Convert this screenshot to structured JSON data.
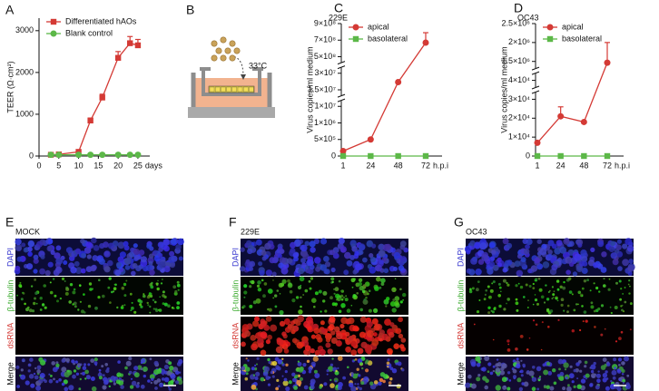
{
  "chart_data": [
    {
      "type": "line",
      "ylabel": "TEER (Ω·cm²)",
      "xlabel": "days",
      "xlim": [
        0,
        28
      ],
      "xticks": [
        0,
        5,
        10,
        15,
        20,
        25
      ],
      "ylim": [
        0,
        3300
      ],
      "yticks": [
        0,
        1000,
        2000,
        3000
      ],
      "legend": "upper left",
      "x": [
        3,
        5,
        10,
        13,
        16,
        20,
        23,
        25
      ],
      "series": [
        {
          "name": "Differentiated hAOs",
          "color": "#d43a35",
          "marker": "square",
          "values": [
            30,
            40,
            100,
            850,
            1400,
            2350,
            2700,
            2650
          ],
          "errors": [
            10,
            10,
            20,
            60,
            80,
            150,
            160,
            140
          ]
        },
        {
          "name": "Blank control",
          "color": "#5cb848",
          "marker": "circle",
          "values": [
            30,
            30,
            30,
            30,
            30,
            30,
            30,
            30
          ],
          "errors": [
            5,
            5,
            5,
            5,
            5,
            5,
            5,
            5
          ]
        }
      ]
    },
    {
      "type": "line",
      "title": "229E",
      "ylabel": "Virus copies/ml medium",
      "xlabel": "h.p.i",
      "categories": [
        "1",
        "24",
        "48",
        "72"
      ],
      "axis_break": true,
      "legend": "upper left",
      "ylim": [
        0,
        900000000
      ],
      "yticks": [
        0,
        {
          "value": 500000,
          "label": "5×10⁵"
        },
        {
          "value": 1000000,
          "label": "1×10⁶"
        },
        {
          "value": 10000000,
          "label": "1×10⁷"
        },
        {
          "value": 15000000,
          "label": "1.5×10⁷"
        },
        {
          "value": 30000000,
          "label": "3×10⁷"
        },
        {
          "value": 500000000,
          "label": "5×10⁸"
        },
        {
          "value": 700000000,
          "label": "7×10⁸"
        },
        {
          "value": 900000000,
          "label": "9×10⁸"
        }
      ],
      "series": [
        {
          "name": "apical",
          "color": "#d43a35",
          "marker": "circle",
          "values": [
            150000,
            500000,
            22000000,
            670000000
          ],
          "errors": [
            0,
            0,
            0,
            120000000
          ]
        },
        {
          "name": "basolateral",
          "color": "#5cb848",
          "marker": "square",
          "values": [
            0,
            0,
            0,
            0
          ],
          "errors": [
            0,
            0,
            0,
            0
          ]
        }
      ]
    },
    {
      "type": "line",
      "title": "OC43",
      "ylabel": "Virus copies/ml medium",
      "xlabel": "h.p.i",
      "categories": [
        "1",
        "24",
        "48",
        "72"
      ],
      "axis_break": true,
      "legend": "upper left",
      "ylim": [
        0,
        2500000
      ],
      "yticks": [
        0,
        {
          "value": 10000,
          "label": "1×10⁴"
        },
        {
          "value": 20000,
          "label": "2×10⁴"
        },
        {
          "value": 30000,
          "label": "3×10⁴"
        },
        {
          "value": 40000,
          "label": "4×10⁴"
        },
        {
          "value": 1500000,
          "label": "1.5×10⁶"
        },
        {
          "value": 2000000,
          "label": "2×10⁶"
        },
        {
          "value": 2500000,
          "label": "2.5×10⁶"
        }
      ],
      "series": [
        {
          "name": "apical",
          "color": "#d43a35",
          "marker": "circle",
          "values": [
            7000,
            21000,
            18000,
            1400000
          ],
          "errors": [
            0,
            5000,
            0,
            600000
          ]
        },
        {
          "name": "basolateral",
          "color": "#5cb848",
          "marker": "square",
          "values": [
            0,
            0,
            0,
            0
          ],
          "errors": [
            0,
            0,
            0,
            0
          ]
        }
      ]
    }
  ],
  "panels": {
    "letters": [
      "A",
      "B",
      "C",
      "D",
      "E",
      "F",
      "G"
    ],
    "diagram": {
      "temperature": "33°C"
    },
    "images": [
      {
        "title": "MOCK"
      },
      {
        "title": "229E"
      },
      {
        "title": "OC43"
      }
    ],
    "channels": [
      "DAPI",
      "β-tubulin",
      "dsRNA",
      "Merge"
    ]
  }
}
